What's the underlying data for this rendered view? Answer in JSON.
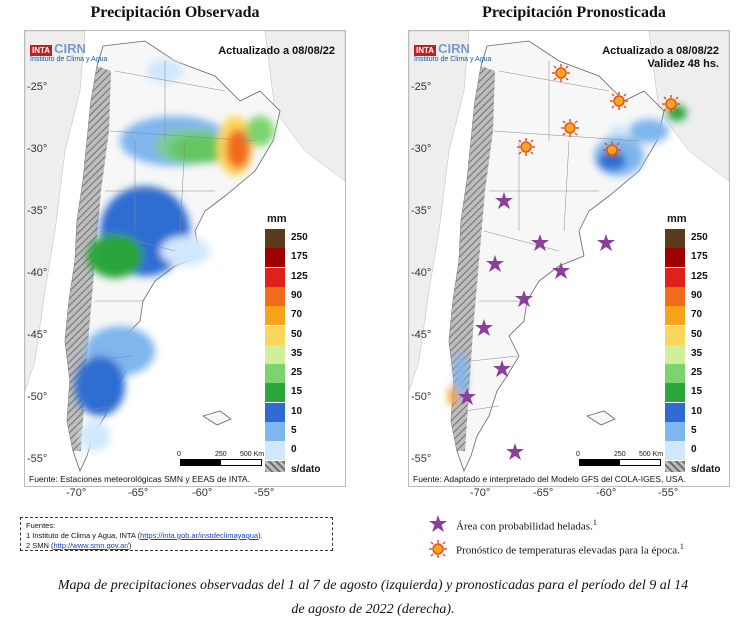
{
  "left": {
    "title": "Precipitación Observada",
    "updated": "Actualizado a 08/08/22",
    "source": "Fuente: Estaciones meteorológicas SMN y EEAS de INTA."
  },
  "right": {
    "title": "Precipitación Pronosticada",
    "updated_line1": "Actualizado a 08/08/22",
    "updated_line2": "Validez 48 hs.",
    "source": "Fuente: Adaptado e interpretado del Modelo GFS del COLA-IGES, USA."
  },
  "logo": {
    "inta": "INTA",
    "cirn": "CIRN",
    "subtitle": "Instituto de Clima y Agua"
  },
  "lat_ticks": [
    "-25°",
    "-30°",
    "-35°",
    "-40°",
    "-45°",
    "-50°",
    "-55°"
  ],
  "lon_ticks": [
    "-70°",
    "-65°",
    "-60°",
    "-55°"
  ],
  "legend": {
    "unit": "mm",
    "levels": [
      {
        "label": "250",
        "color": "#5c3a1e"
      },
      {
        "label": "175",
        "color": "#9e0000"
      },
      {
        "label": "125",
        "color": "#e0201a"
      },
      {
        "label": "90",
        "color": "#f26a1b"
      },
      {
        "label": "70",
        "color": "#f7a21b"
      },
      {
        "label": "50",
        "color": "#fbd65c"
      },
      {
        "label": "35",
        "color": "#cfef9a"
      },
      {
        "label": "25",
        "color": "#7cd46e"
      },
      {
        "label": "15",
        "color": "#2ca53a"
      },
      {
        "label": "10",
        "color": "#2d6dd2"
      },
      {
        "label": "5",
        "color": "#7fb6ee"
      },
      {
        "label": "0",
        "color": "#cfe8fb"
      },
      {
        "label": "s/dato",
        "color": "#9a9a9a"
      }
    ]
  },
  "scale": {
    "zero": "0",
    "mid": "250",
    "end": "500 Km"
  },
  "footnote": {
    "heading": "Fuentes:",
    "line1_text": "1 Instituto de Clima y Agua, INTA (",
    "line1_link": "https://inta.gob.ar/instdeclimayagua",
    "line1_end": ").",
    "line2_text": "2 SMN (",
    "line2_link": "http://www.smn.gov.ar/",
    "line2_end": ")"
  },
  "key": {
    "frost": "Área con probabilidad heladas.",
    "frost_sup": "1",
    "heat": "Pronóstico de temperaturas elevadas para la época.",
    "heat_sup": "1"
  },
  "caption": {
    "line1": "Mapa de precipitaciones observadas del 1 al 7 de agosto (izquierda) y pronosticadas para el período del 9 al 14",
    "line2": "de agosto  de 2022 (derecha)."
  },
  "colors": {
    "frost": "#8a3f9b",
    "heat": "#e8501c",
    "hatch": "#8c8c8c"
  }
}
